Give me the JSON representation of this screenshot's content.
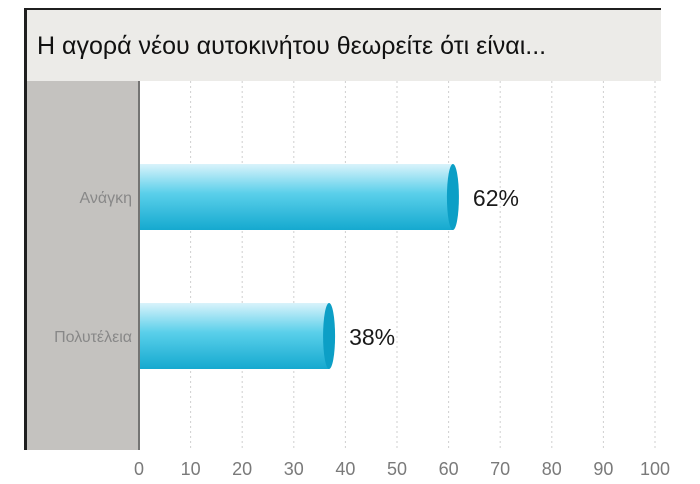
{
  "chart_data": {
    "type": "bar",
    "orientation": "horizontal",
    "title": "Η αγορά νέου αυτοκινήτου θεωρείτε ότι είναι...",
    "categories": [
      "Ανάγκη",
      "Πολυτέλεια"
    ],
    "values": [
      62,
      38
    ],
    "value_labels": [
      "62%",
      "38%"
    ],
    "xlabel": "",
    "ylabel": "",
    "xlim": [
      0,
      100
    ],
    "x_ticks": [
      "0",
      "10",
      "20",
      "30",
      "40",
      "50",
      "60",
      "70",
      "80",
      "90",
      "100"
    ],
    "grid": "vertical dashed",
    "legend": "none"
  },
  "colors": {
    "bar_light": "#d9f3fb",
    "bar_mid": "#59cfea",
    "bar_dark": "#15a9cf",
    "bar_cap": "#0c9fc6",
    "frame_gray": "#c4c2bf",
    "frame_dark": "#1f1f1f",
    "plot_bg": "#ffffff",
    "grid": "#cfcfcf",
    "category_text": "#888888",
    "tick_text": "#7a7a7a"
  }
}
